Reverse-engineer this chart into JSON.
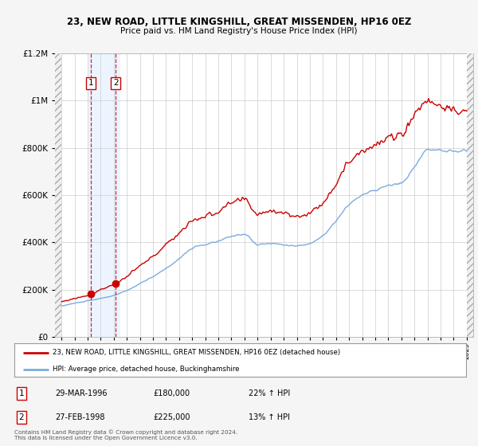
{
  "title": "23, NEW ROAD, LITTLE KINGSHILL, GREAT MISSENDEN, HP16 0EZ",
  "subtitle": "Price paid vs. HM Land Registry's House Price Index (HPI)",
  "legend_line1": "23, NEW ROAD, LITTLE KINGSHILL, GREAT MISSENDEN, HP16 0EZ (detached house)",
  "legend_line2": "HPI: Average price, detached house, Buckinghamshire",
  "footer": "Contains HM Land Registry data © Crown copyright and database right 2024.\nThis data is licensed under the Open Government Licence v3.0.",
  "transaction1": {
    "label": "1",
    "date": 1996.22,
    "price": 180000,
    "date_str": "29-MAR-1996",
    "price_str": "£180,000",
    "pct_str": "22% ↑ HPI"
  },
  "transaction2": {
    "label": "2",
    "date": 1998.14,
    "price": 225000,
    "date_str": "27-FEB-1998",
    "price_str": "£225,000",
    "pct_str": "13% ↑ HPI"
  },
  "ylim": [
    0,
    1200000
  ],
  "xlim": [
    1993.5,
    2025.5
  ],
  "property_color": "#cc0000",
  "hpi_color": "#7aace0",
  "background_color": "#f5f5f5",
  "plot_bg": "#ffffff",
  "grid_color": "#cccccc",
  "hatch_region_left_end": 1994.0,
  "hatch_region_right_start": 2025.0,
  "shade_start": 1996.0,
  "shade_end": 1998.5
}
